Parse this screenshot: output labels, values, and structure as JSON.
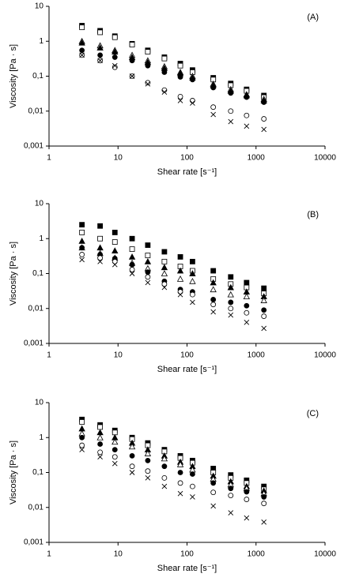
{
  "chart_data": [
    {
      "type": "scatter",
      "panel_label": "(A)",
      "x_label": "Shear rate [s⁻¹]",
      "y_label": "Viscosity [Pa · s]",
      "x_scale": "log",
      "y_scale": "log",
      "xlim": [
        1,
        10000
      ],
      "ylim": [
        0.001,
        10
      ],
      "xticks": [
        1,
        10,
        100,
        1000,
        10000
      ],
      "yticks": [
        {
          "value": 0.001,
          "label": "0,001"
        },
        {
          "value": 0.01,
          "label": "0,01"
        },
        {
          "value": 0.1,
          "label": "0,1"
        },
        1,
        10
      ],
      "x": [
        3,
        5.5,
        9,
        16,
        27,
        47,
        80,
        120,
        240,
        430,
        730,
        1300
      ],
      "series": [
        {
          "marker": "square",
          "filled": true,
          "color": "#000000",
          "values": [
            2.8,
            2.0,
            1.4,
            0.85,
            0.55,
            0.35,
            0.23,
            0.15,
            0.09,
            0.062,
            0.042,
            0.028
          ]
        },
        {
          "marker": "square",
          "filled": false,
          "color": "#000000",
          "values": [
            2.5,
            1.8,
            1.3,
            0.8,
            0.5,
            0.32,
            0.2,
            0.13,
            0.08,
            0.055,
            0.038,
            0.025
          ]
        },
        {
          "marker": "triangle",
          "filled": false,
          "color": "#000000",
          "values": [
            1.0,
            0.75,
            0.55,
            0.4,
            0.28,
            0.19,
            0.13,
            0.1,
            0.06,
            0.042,
            0.03,
            0.022
          ]
        },
        {
          "marker": "triangle",
          "filled": true,
          "color": "#000000",
          "values": [
            0.9,
            0.65,
            0.5,
            0.35,
            0.25,
            0.17,
            0.12,
            0.09,
            0.055,
            0.038,
            0.028,
            0.02
          ]
        },
        {
          "marker": "circle",
          "filled": true,
          "color": "#000000",
          "values": [
            0.55,
            0.4,
            0.35,
            0.28,
            0.2,
            0.13,
            0.095,
            0.08,
            0.047,
            0.033,
            0.025,
            0.018
          ]
        },
        {
          "marker": "circle",
          "filled": false,
          "color": "#000000",
          "values": [
            0.4,
            0.28,
            0.18,
            0.1,
            0.065,
            0.04,
            0.026,
            0.02,
            0.013,
            0.01,
            0.0075,
            0.006
          ]
        },
        {
          "marker": "cross",
          "filled": false,
          "color": "#000000",
          "values": [
            0.4,
            0.28,
            0.2,
            0.1,
            0.06,
            0.035,
            0.02,
            0.017,
            0.008,
            0.005,
            0.0037,
            0.003
          ]
        }
      ]
    },
    {
      "type": "scatter",
      "panel_label": "(B)",
      "x_label": "Shear rate [s⁻¹]",
      "y_label": "Viscosity [Pa · s]",
      "x_scale": "log",
      "y_scale": "log",
      "xlim": [
        1,
        10000
      ],
      "ylim": [
        0.001,
        10
      ],
      "xticks": [
        1,
        10,
        100,
        1000,
        10000
      ],
      "yticks": [
        {
          "value": 0.001,
          "label": "0,001"
        },
        {
          "value": 0.01,
          "label": "0,01"
        },
        {
          "value": 0.1,
          "label": "0,1"
        },
        1,
        10
      ],
      "x": [
        3,
        5.5,
        9,
        16,
        27,
        47,
        80,
        120,
        240,
        430,
        730,
        1300
      ],
      "series": [
        {
          "marker": "square",
          "filled": true,
          "color": "#000000",
          "values": [
            2.5,
            2.3,
            1.5,
            1.0,
            0.65,
            0.42,
            0.3,
            0.22,
            0.12,
            0.08,
            0.055,
            0.038
          ]
        },
        {
          "marker": "square",
          "filled": false,
          "color": "#000000",
          "values": [
            1.5,
            1.0,
            0.8,
            0.5,
            0.33,
            0.22,
            0.16,
            0.12,
            0.07,
            0.05,
            0.04,
            0.027
          ]
        },
        {
          "marker": "triangle",
          "filled": true,
          "color": "#000000",
          "values": [
            0.85,
            0.55,
            0.45,
            0.3,
            0.22,
            0.15,
            0.12,
            0.1,
            0.055,
            0.04,
            0.03,
            0.022
          ]
        },
        {
          "marker": "triangle",
          "filled": false,
          "color": "#000000",
          "values": [
            0.55,
            0.38,
            0.28,
            0.2,
            0.14,
            0.1,
            0.07,
            0.06,
            0.035,
            0.025,
            0.022,
            0.017
          ]
        },
        {
          "marker": "circle",
          "filled": true,
          "color": "#000000",
          "values": [
            0.55,
            0.35,
            0.27,
            0.18,
            0.11,
            0.06,
            0.035,
            0.03,
            0.018,
            0.015,
            0.012,
            0.009
          ]
        },
        {
          "marker": "circle",
          "filled": false,
          "color": "#000000",
          "values": [
            0.35,
            0.28,
            0.22,
            0.13,
            0.08,
            0.05,
            0.03,
            0.025,
            0.013,
            0.01,
            0.0075,
            0.006
          ]
        },
        {
          "marker": "cross",
          "filled": false,
          "color": "#000000",
          "values": [
            0.25,
            0.22,
            0.18,
            0.1,
            0.055,
            0.04,
            0.025,
            0.015,
            0.008,
            0.0065,
            0.004,
            0.0027
          ]
        }
      ]
    },
    {
      "type": "scatter",
      "panel_label": "(C)",
      "x_label": "Shear rate [s⁻¹]",
      "y_label": "Viscosity [Pa · s]",
      "x_scale": "log",
      "y_scale": "log",
      "xlim": [
        1,
        10000
      ],
      "ylim": [
        0.001,
        10
      ],
      "xticks": [
        1,
        10,
        100,
        1000,
        10000
      ],
      "yticks": [
        {
          "value": 0.001,
          "label": "0,001"
        },
        {
          "value": 0.01,
          "label": "0,01"
        },
        {
          "value": 0.1,
          "label": "0,1"
        },
        1,
        10
      ],
      "x": [
        3,
        5.5,
        9,
        16,
        27,
        47,
        80,
        120,
        240,
        430,
        730,
        1300
      ],
      "series": [
        {
          "marker": "square",
          "filled": true,
          "color": "#000000",
          "values": [
            3.3,
            2.3,
            1.6,
            1.0,
            0.7,
            0.45,
            0.3,
            0.22,
            0.13,
            0.085,
            0.06,
            0.04
          ]
        },
        {
          "marker": "square",
          "filled": false,
          "color": "#000000",
          "values": [
            2.8,
            2.0,
            1.4,
            0.9,
            0.6,
            0.4,
            0.26,
            0.19,
            0.1,
            0.07,
            0.05,
            0.033
          ]
        },
        {
          "marker": "triangle",
          "filled": true,
          "color": "#000000",
          "values": [
            1.8,
            1.4,
            1.0,
            0.7,
            0.45,
            0.3,
            0.2,
            0.15,
            0.08,
            0.055,
            0.04,
            0.03
          ]
        },
        {
          "marker": "triangle",
          "filled": false,
          "color": "#000000",
          "values": [
            1.3,
            1.0,
            0.75,
            0.55,
            0.35,
            0.25,
            0.17,
            0.12,
            0.065,
            0.045,
            0.035,
            0.025
          ]
        },
        {
          "marker": "circle",
          "filled": true,
          "color": "#000000",
          "values": [
            1.0,
            0.65,
            0.45,
            0.3,
            0.22,
            0.15,
            0.1,
            0.09,
            0.05,
            0.035,
            0.028,
            0.02
          ]
        },
        {
          "marker": "circle",
          "filled": false,
          "color": "#000000",
          "values": [
            0.6,
            0.38,
            0.28,
            0.15,
            0.11,
            0.07,
            0.05,
            0.04,
            0.027,
            0.022,
            0.017,
            0.013
          ]
        },
        {
          "marker": "cross",
          "filled": false,
          "color": "#000000",
          "values": [
            0.45,
            0.28,
            0.18,
            0.1,
            0.07,
            0.04,
            0.025,
            0.02,
            0.011,
            0.007,
            0.005,
            0.0038
          ]
        }
      ]
    }
  ]
}
